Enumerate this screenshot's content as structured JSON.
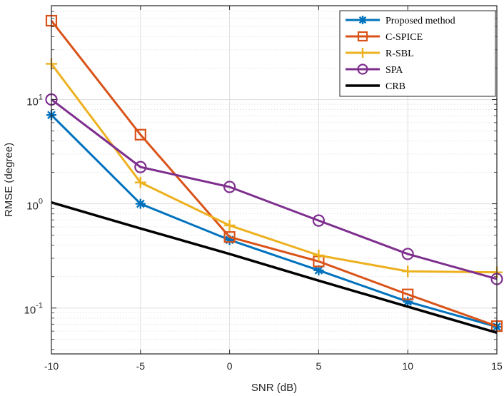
{
  "chart_data": {
    "type": "line",
    "title": "",
    "xlabel": "SNR (dB)",
    "ylabel": "RMSE (degree)",
    "yscale": "log",
    "xlim": [
      -10,
      15
    ],
    "ylim": [
      0.0363,
      79.4
    ],
    "grid": true,
    "legend_position": "top-right",
    "x": [
      -10,
      -5,
      0,
      5,
      10,
      15
    ],
    "xticks": [
      -10,
      -5,
      0,
      5,
      10,
      15
    ],
    "xtick_labels": [
      "-10",
      "-5",
      "0",
      "5",
      "10",
      "15"
    ],
    "yticks": [
      {
        "value": 0.1,
        "base": "10",
        "exp": "-1"
      },
      {
        "value": 1,
        "base": "10",
        "exp": "0"
      },
      {
        "value": 10,
        "base": "10",
        "exp": "1"
      }
    ],
    "series": [
      {
        "name": "Proposed method",
        "color": "#0072BD",
        "marker": "asterisk",
        "values": [
          7.1,
          1.0,
          0.45,
          0.23,
          0.115,
          0.066
        ]
      },
      {
        "name": "C-SPICE",
        "color": "#D95319",
        "marker": "square",
        "values": [
          57,
          4.6,
          0.48,
          0.28,
          0.135,
          0.067
        ]
      },
      {
        "name": "R-SBL",
        "color": "#EDB120",
        "marker": "plus",
        "values": [
          22,
          1.6,
          0.62,
          0.32,
          0.225,
          0.22
        ]
      },
      {
        "name": "SPA",
        "color": "#7E2F8E",
        "marker": "circle",
        "values": [
          10,
          2.25,
          1.45,
          0.69,
          0.33,
          0.19
        ]
      },
      {
        "name": "CRB",
        "color": "#000000",
        "marker": "none",
        "values": [
          1.03,
          0.58,
          0.33,
          0.183,
          0.103,
          0.058
        ]
      }
    ]
  }
}
